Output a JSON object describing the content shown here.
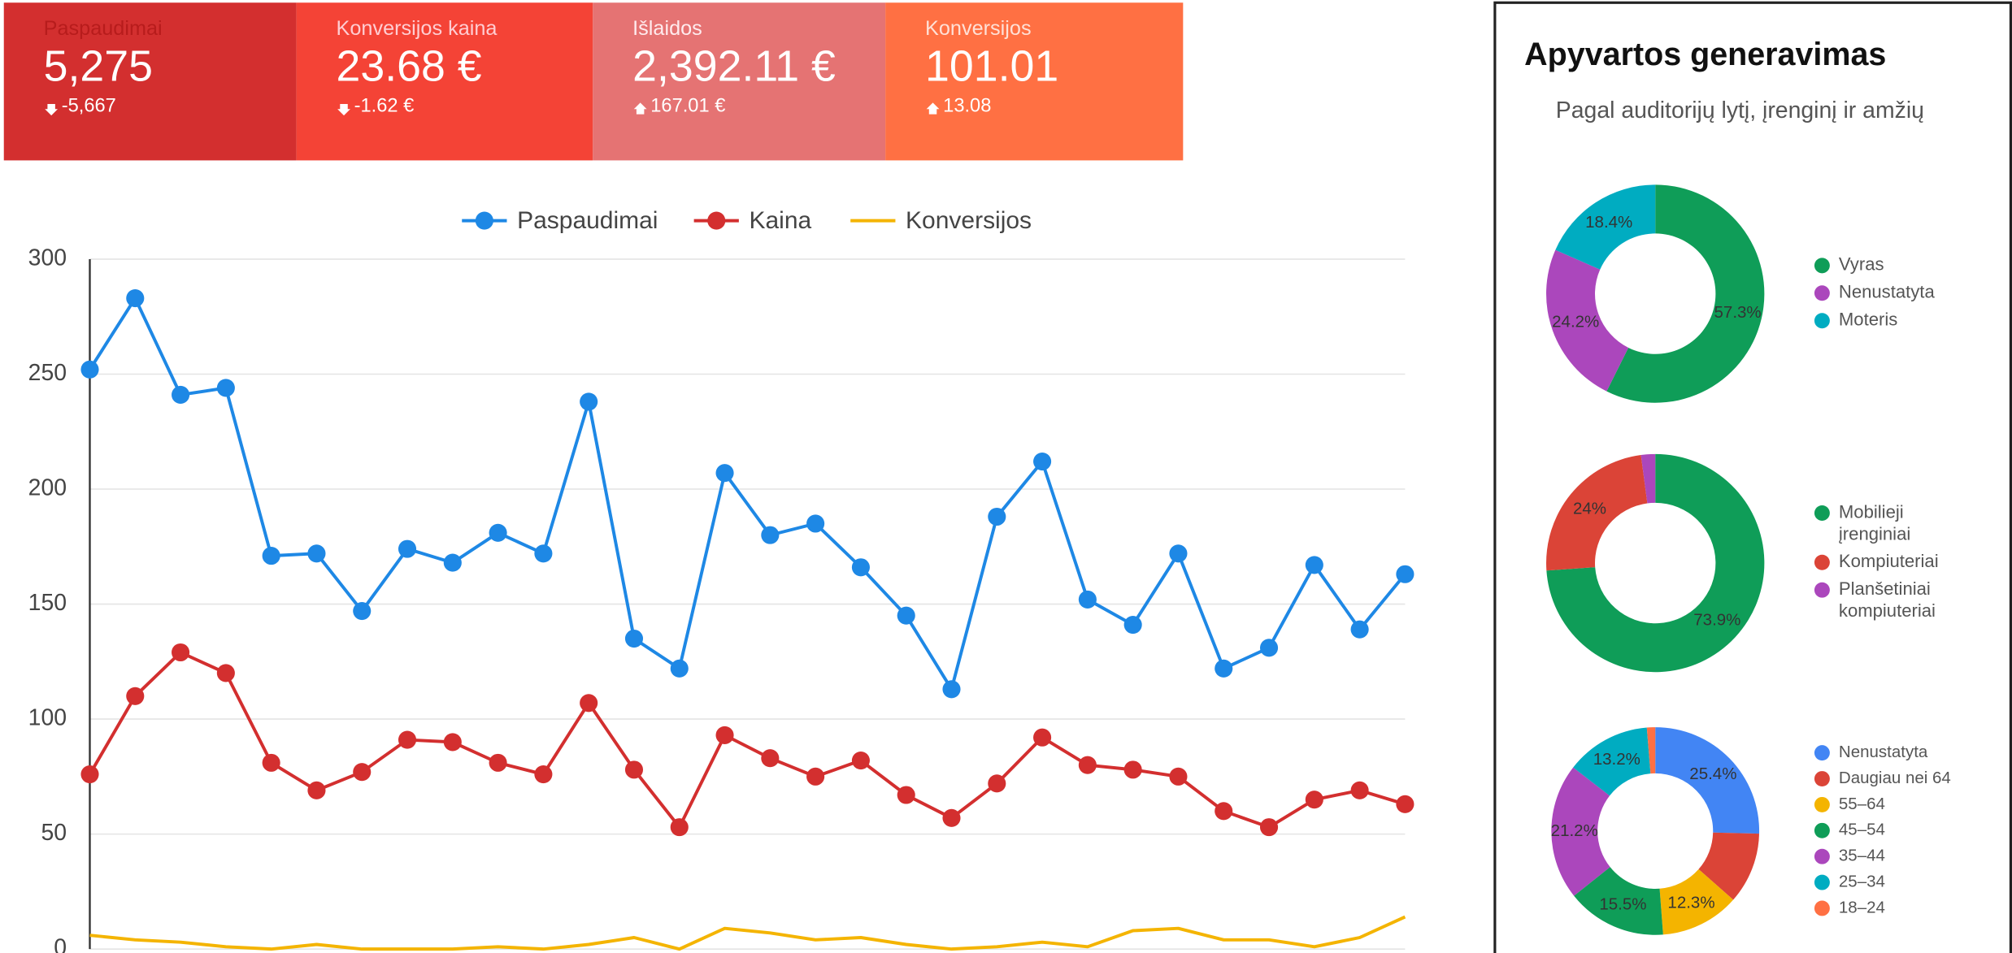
{
  "kpis": [
    {
      "label": "Paspaudimai",
      "value": "5,275",
      "delta": "-5,667",
      "trend": "down",
      "color": "#d32f2f",
      "label_color": "#b71c1c"
    },
    {
      "label": "Konversijos kaina",
      "value": "23.68 €",
      "delta": "-1.62 €",
      "trend": "down",
      "color": "#f44336",
      "label_color": "#ffcdd2"
    },
    {
      "label": "Išlaidos",
      "value": "2,392.11 €",
      "delta": "167.01 €",
      "trend": "up",
      "color": "#e57373",
      "label_color": "#ffebee"
    },
    {
      "label": "Konversijos",
      "value": "101.01",
      "delta": "13.08",
      "trend": "up",
      "color": "#ff7043",
      "label_color": "#ffe0d6"
    }
  ],
  "panel": {
    "title": "Apyvartos generavimas",
    "subtitle": "Pagal auditorijų lytį, įrenginį ir amžių"
  },
  "chart_data": [
    {
      "type": "line",
      "categories": [
        null,
        null,
        null,
        null,
        null,
        null,
        null,
        null,
        null,
        null,
        null,
        null,
        null,
        null,
        null,
        null,
        null,
        null,
        null,
        null,
        null,
        null,
        null,
        null,
        null,
        null,
        null,
        null,
        null,
        null
      ],
      "series": [
        {
          "name": "Paspaudimai",
          "color": "#1e88e5",
          "markers": true,
          "values": [
            252,
            283,
            241,
            244,
            171,
            172,
            147,
            174,
            168,
            181,
            172,
            238,
            135,
            122,
            207,
            180,
            185,
            166,
            145,
            113,
            188,
            212,
            152,
            141,
            172,
            122,
            131,
            167,
            139,
            163
          ]
        },
        {
          "name": "Kaina",
          "color": "#d32f2f",
          "markers": true,
          "values": [
            76,
            110,
            129,
            120,
            81,
            69,
            77,
            91,
            90,
            81,
            76,
            107,
            78,
            53,
            93,
            83,
            75,
            82,
            67,
            57,
            72,
            92,
            80,
            78,
            75,
            60,
            53,
            65,
            69,
            63
          ]
        },
        {
          "name": "Konversijos",
          "color": "#f4b400",
          "markers": false,
          "values": [
            6,
            4,
            3,
            1,
            0,
            2,
            0,
            0,
            0,
            1,
            0,
            2,
            5,
            0,
            9,
            7,
            4,
            5,
            2,
            0,
            1,
            3,
            1,
            8,
            9,
            4,
            4,
            1,
            5,
            14
          ]
        }
      ],
      "ylim": [
        0,
        300
      ],
      "yticks": [
        0,
        50,
        100,
        150,
        200,
        250,
        300
      ],
      "grid": true
    },
    {
      "type": "pie",
      "donut": true,
      "categories": [
        "Vyras",
        "Nenustatyta",
        "Moteris"
      ],
      "colors": [
        "#0f9d58",
        "#ab47bc",
        "#00acc1"
      ],
      "values": [
        57.3,
        24.2,
        18.4
      ],
      "value_labels": [
        "57.3%",
        "24.2%",
        "18.4%"
      ]
    },
    {
      "type": "pie",
      "donut": true,
      "categories": [
        "Mobilieji įrenginiai",
        "Kompiuteriai",
        "Planšetiniai kompiuteriai"
      ],
      "colors": [
        "#0f9d58",
        "#db4437",
        "#ab47bc"
      ],
      "values": [
        73.9,
        24,
        2.1
      ],
      "value_labels": [
        "73.9%",
        "24%",
        null
      ]
    },
    {
      "type": "pie",
      "donut": true,
      "categories": [
        "Nenustatyta",
        "Daugiau nei 64",
        "55–64",
        "45–54",
        "35–44",
        "25–34",
        "18–24"
      ],
      "colors": [
        "#4285f4",
        "#db4437",
        "#f4b400",
        "#0f9d58",
        "#ab47bc",
        "#00acc1",
        "#ff7043"
      ],
      "values": [
        25.4,
        11.1,
        12.3,
        15.5,
        21.2,
        13.2,
        1.3
      ],
      "value_labels": [
        "25.4%",
        null,
        "12.3%",
        "15.5%",
        "21.2%",
        "13.2%",
        null
      ]
    }
  ]
}
